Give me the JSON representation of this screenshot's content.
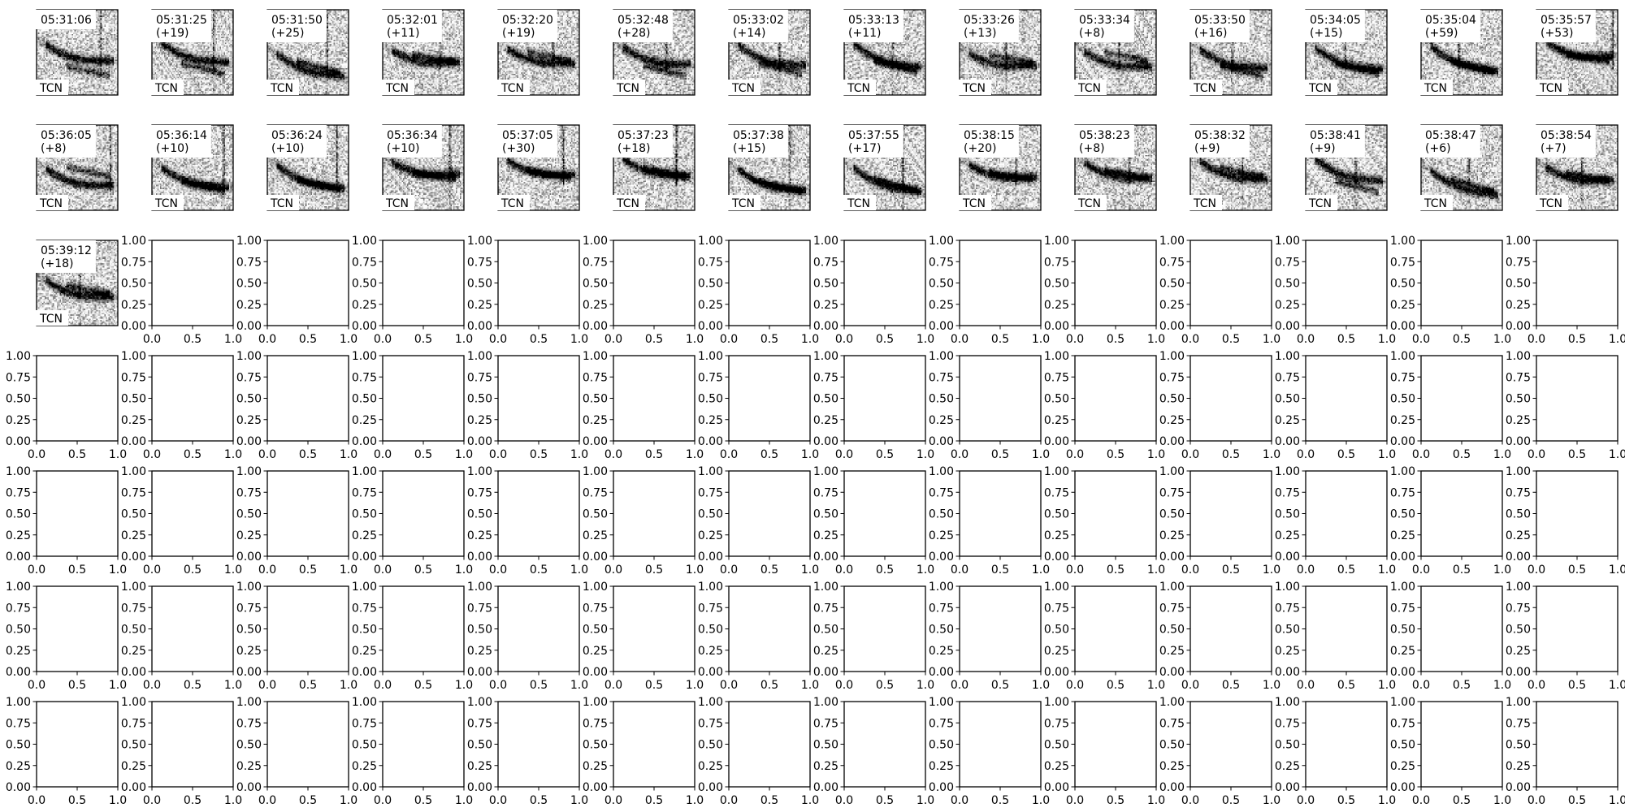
{
  "chart_data": {
    "type": "heatmap",
    "grid": {
      "rows": 7,
      "cols": 14
    },
    "panel_corner_label": "TCN",
    "colormap": "gray_r",
    "panels": [
      "05:31:06",
      "05:31:25(+19)",
      "05:31:50(+25)",
      "05:32:01(+11)",
      "05:32:20(+19)",
      "05:32:48(+28)",
      "05:33:02(+14)",
      "05:33:13(+11)",
      "05:33:26(+13)",
      "05:33:34(+8)",
      "05:33:50(+16)",
      "05:34:05(+15)",
      "05:35:04(+59)",
      "05:35:57(+53)",
      "05:36:05(+8)",
      "05:36:14(+10)",
      "05:36:24(+10)",
      "05:36:34(+10)",
      "05:37:05(+30)",
      "05:37:23(+18)",
      "05:37:38(+15)",
      "05:37:55(+17)",
      "05:38:15(+20)",
      "05:38:23(+8)",
      "05:38:32(+9)",
      "05:38:41(+9)",
      "05:38:47(+6)",
      "05:38:54(+7)",
      "05:39:12(+18)"
    ],
    "empty_axes": {
      "xlim": [
        0,
        1
      ],
      "ylim": [
        0,
        1
      ],
      "x_ticks": [
        "0.0",
        "0.5",
        "1.0"
      ],
      "y_ticks": [
        "0.00",
        "0.25",
        "0.50",
        "0.75",
        "1.00"
      ]
    },
    "colors": {
      "ink": "#000000",
      "background": "#ffffff"
    }
  }
}
